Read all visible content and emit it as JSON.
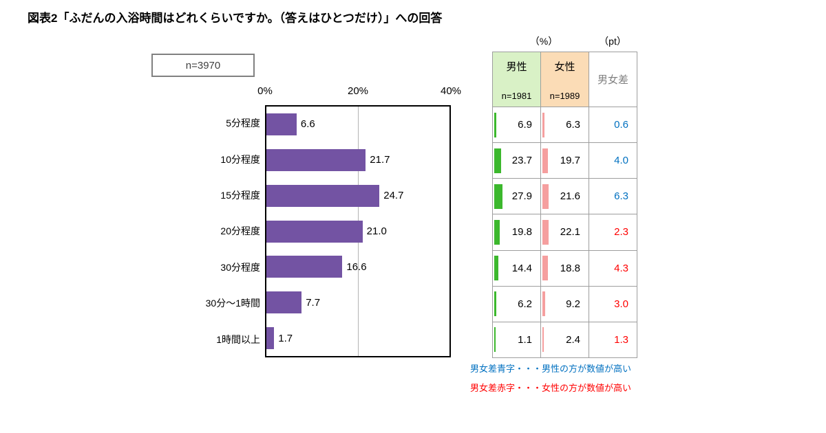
{
  "title": "図表2「ふだんの入浴時間はどれくらいですか。（答えはひとつだけ）」への回答",
  "sample_label": "n=3970",
  "chart_data": {
    "type": "bar",
    "orientation": "horizontal",
    "title": "ふだんの入浴時間",
    "xlim": [
      0,
      40
    ],
    "x_ticks": [
      "0%",
      "20%",
      "40%"
    ],
    "grid": "single vertical gridline at 20%",
    "categories": [
      "5分程度",
      "10分程度",
      "15分程度",
      "20分程度",
      "30分程度",
      "30分～1時間",
      "1時間以上"
    ],
    "values": [
      6.6,
      21.7,
      24.7,
      21.0,
      16.6,
      7.7,
      1.7
    ],
    "series": [
      {
        "name": "男性",
        "n_label": "n=1981",
        "values": [
          6.9,
          23.7,
          27.9,
          19.8,
          14.4,
          6.2,
          1.1
        ]
      },
      {
        "name": "女性",
        "n_label": "n=1989",
        "values": [
          6.3,
          19.7,
          21.6,
          22.1,
          18.8,
          9.2,
          2.4
        ]
      }
    ],
    "diff": {
      "header": "男女差",
      "values": [
        0.6,
        4.0,
        6.3,
        2.3,
        4.3,
        3.0,
        1.3
      ],
      "directions": [
        "male",
        "male",
        "male",
        "female",
        "female",
        "female",
        "female"
      ]
    },
    "unit_percent_label": "（%）",
    "unit_pt_label": "（pt）"
  },
  "notes": [
    {
      "text": "男女差青字・・・男性の方が数値が高い",
      "color": "#0070c0"
    },
    {
      "text": "男女差赤字・・・女性の方が数値が高い",
      "color": "#ff0000"
    }
  ],
  "colors": {
    "bar_total": "#7353a3",
    "bar_male": "#3cb82d",
    "bar_female": "#f59f9f",
    "male_header_bg": "#d9f1c6",
    "female_header_bg": "#fbdcb6",
    "diff_male_color": "#0070c0",
    "diff_female_color": "#ff0000"
  }
}
